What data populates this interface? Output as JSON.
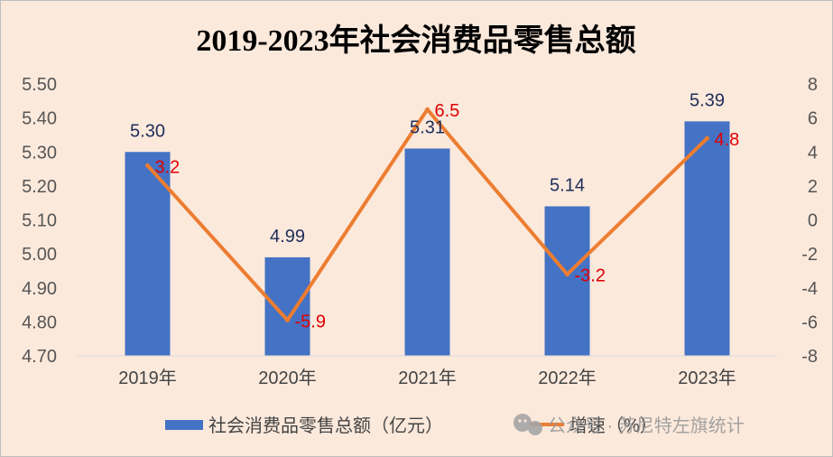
{
  "chart_data": {
    "type": "bar",
    "title": "2019-2023年社会消费品零售总额",
    "categories": [
      "2019年",
      "2020年",
      "2021年",
      "2022年",
      "2023年"
    ],
    "series": [
      {
        "name": "社会消费品零售总额（亿元）",
        "type": "bar",
        "axis": "left",
        "values": [
          5.3,
          4.99,
          5.31,
          5.14,
          5.39
        ],
        "labels": [
          "5.30",
          "4.99",
          "5.31",
          "5.14",
          "5.39"
        ],
        "color": "#4472c4",
        "label_color": "#1f2d5a"
      },
      {
        "name": "增速（%）",
        "type": "line",
        "axis": "right",
        "values": [
          3.2,
          -5.9,
          6.5,
          -3.2,
          4.8
        ],
        "labels": [
          "3.2",
          "-5.9",
          "6.5",
          "-3.2",
          "4.8"
        ],
        "color": "#ed7d31",
        "label_color": "#e00000"
      }
    ],
    "y_left": {
      "range": [
        4.7,
        5.5
      ],
      "ticks": [
        "4.70",
        "4.80",
        "4.90",
        "5.00",
        "5.10",
        "5.20",
        "5.30",
        "5.40",
        "5.50"
      ]
    },
    "y_right": {
      "range": [
        -8,
        8
      ],
      "ticks": [
        "-8",
        "-6",
        "-4",
        "-2",
        "0",
        "2",
        "4",
        "6",
        "8"
      ]
    },
    "grid": false,
    "legend_position": "bottom"
  },
  "watermark": "公众号 · 苏尼特左旗统计",
  "colors": {
    "background": "#fbe9dc",
    "bar": "#4472c4",
    "line": "#ed7d31",
    "line_label": "#e00000"
  }
}
